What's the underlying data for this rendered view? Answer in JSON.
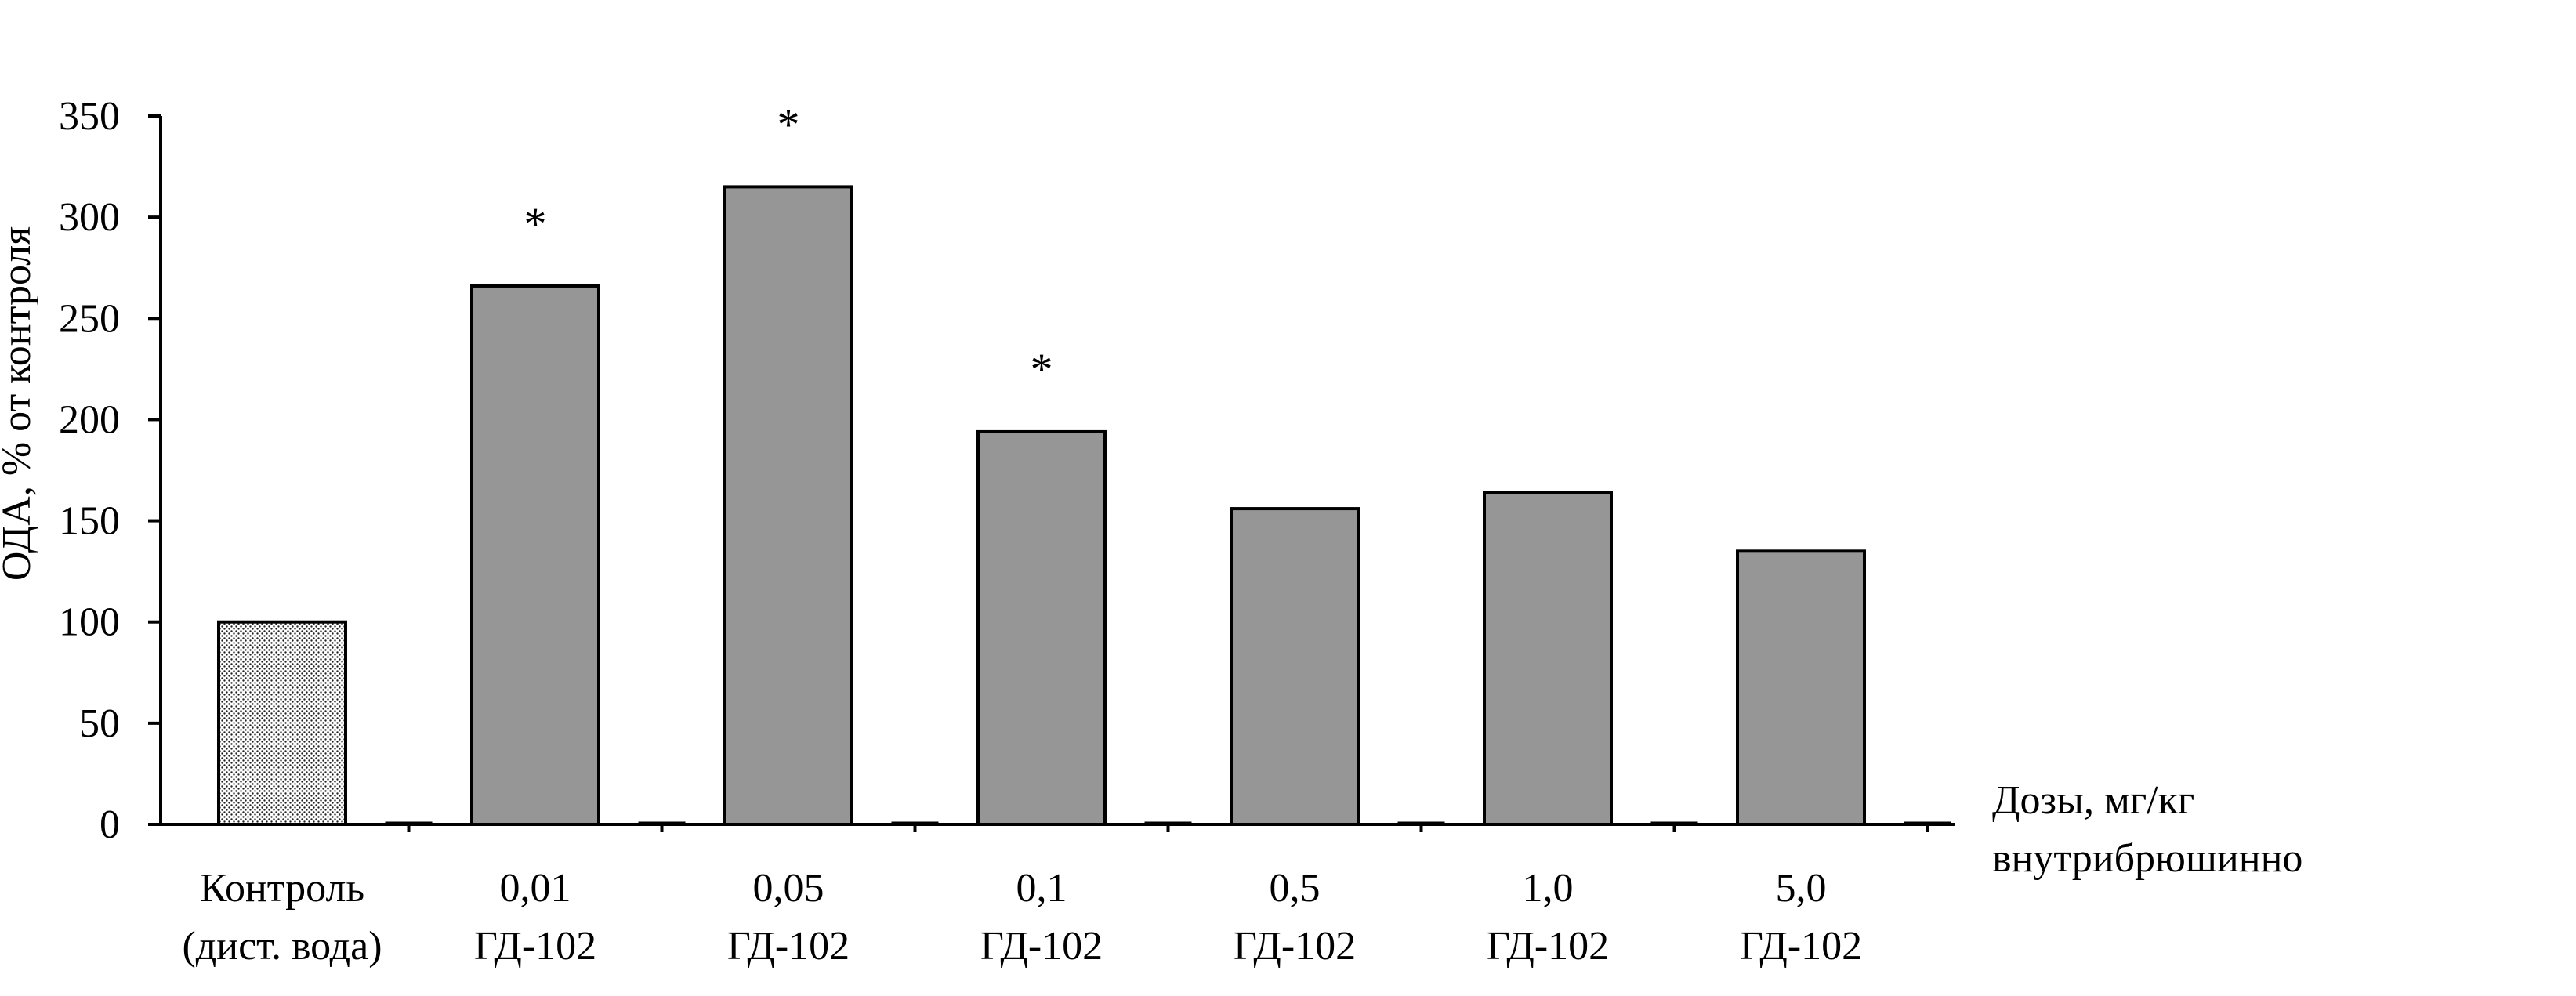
{
  "chart_data": {
    "type": "bar",
    "title": "",
    "ylabel": "ОДА, % от контроля",
    "xlabel": [
      "Дозы, мг/кг",
      "внутрибрюшинно"
    ],
    "ylim": [
      0,
      350
    ],
    "yticks": [
      0,
      50,
      100,
      150,
      200,
      250,
      300,
      350
    ],
    "grid": false,
    "categories": [
      [
        "Контроль",
        "(дист. вода)"
      ],
      [
        "0,01",
        "ГД-102"
      ],
      [
        "0,05",
        "ГД-102"
      ],
      [
        "0,1",
        "ГД-102"
      ],
      [
        "0,5",
        "ГД-102"
      ],
      [
        "1,0",
        "ГД-102"
      ],
      [
        "5,0",
        "ГД-102"
      ]
    ],
    "values": [
      100,
      266,
      315,
      194,
      156,
      164,
      135
    ],
    "significant": [
      false,
      true,
      true,
      true,
      false,
      false,
      false
    ],
    "significance_mark": "*",
    "colors": {
      "control": "dotted-white",
      "bar": "#969696",
      "stroke": "#000000"
    }
  }
}
